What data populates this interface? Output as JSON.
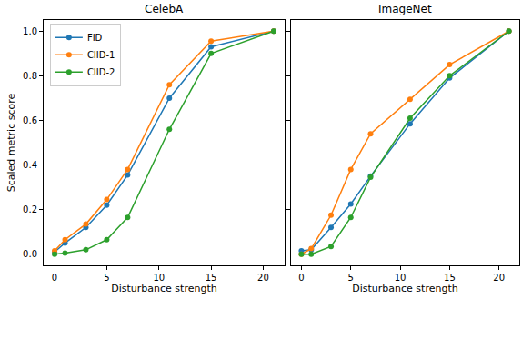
{
  "chart_data": [
    {
      "type": "line",
      "title": "CelebA",
      "x_label": "Disturbance strength",
      "y_label": "Scaled metric score",
      "x": [
        0,
        1,
        3,
        5,
        7,
        11,
        15,
        21
      ],
      "series": [
        {
          "name": "FID",
          "color": "#1f77b4",
          "values": [
            0.01,
            0.05,
            0.12,
            0.22,
            0.355,
            0.7,
            0.93,
            1.0
          ]
        },
        {
          "name": "CIID-1",
          "color": "#ff7f0e",
          "values": [
            0.015,
            0.065,
            0.135,
            0.245,
            0.38,
            0.76,
            0.955,
            1.0
          ]
        },
        {
          "name": "CIID-2",
          "color": "#2ca02c",
          "values": [
            0.0,
            0.005,
            0.02,
            0.065,
            0.165,
            0.56,
            0.9,
            1.0
          ]
        }
      ],
      "xlim": [
        -1.05,
        22.05
      ],
      "ylim": [
        -0.05,
        1.05
      ],
      "xticks": [
        0,
        5,
        10,
        15,
        20
      ],
      "yticks": [
        {
          "value": 0,
          "label": "0.0"
        },
        {
          "value": 0.2,
          "label": "0.2"
        },
        {
          "value": 0.4,
          "label": "0.4"
        },
        {
          "value": 0.6,
          "label": "0.6"
        },
        {
          "value": 0.8,
          "label": "0.8"
        },
        {
          "value": 1,
          "label": "1.0"
        }
      ],
      "legend": "upper left",
      "marker": "circle"
    },
    {
      "type": "line",
      "title": "ImageNet",
      "x_label": "Disturbance strength",
      "x": [
        0,
        1,
        3,
        5,
        7,
        11,
        15,
        21
      ],
      "series": [
        {
          "name": "FID",
          "color": "#1f77b4",
          "values": [
            0.015,
            0.02,
            0.12,
            0.225,
            0.35,
            0.585,
            0.79,
            1.0
          ]
        },
        {
          "name": "CIID-1",
          "color": "#ff7f0e",
          "values": [
            0.0,
            0.025,
            0.175,
            0.38,
            0.54,
            0.695,
            0.85,
            1.0
          ]
        },
        {
          "name": "CIID-2",
          "color": "#2ca02c",
          "values": [
            0.0,
            0.0,
            0.035,
            0.165,
            0.345,
            0.61,
            0.8,
            1.0
          ]
        }
      ],
      "xlim": [
        -1.05,
        22.05
      ],
      "ylim": [
        -0.05,
        1.05
      ],
      "xticks": [
        0,
        5,
        10,
        15,
        20
      ],
      "yticks": [
        {
          "value": 0,
          "label": "0.0"
        },
        {
          "value": 0.2,
          "label": "0.2"
        },
        {
          "value": 0.4,
          "label": "0.4"
        },
        {
          "value": 0.6,
          "label": "0.6"
        },
        {
          "value": 0.8,
          "label": "0.8"
        },
        {
          "value": 1,
          "label": "1.0"
        }
      ],
      "tick_labels": "x",
      "marker": "circle"
    }
  ]
}
